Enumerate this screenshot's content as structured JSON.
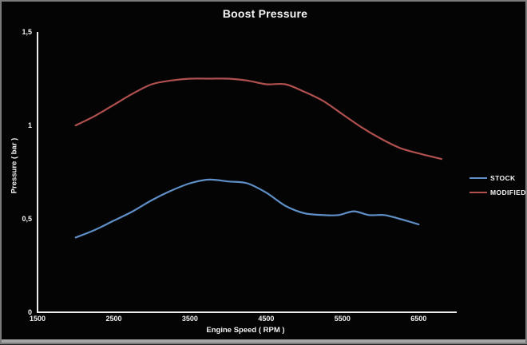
{
  "window": {
    "background": "#040404",
    "border_color": "#7b7b7b",
    "bottom_bar_color": "#a6a6a6"
  },
  "chart_data": {
    "type": "line",
    "title": "Boost Pressure",
    "xlabel": "Engine Speed ( RPM )",
    "ylabel": "Pressure ( bar )",
    "xlim": [
      1500,
      7000
    ],
    "ylim": [
      0,
      1.5
    ],
    "grid": false,
    "legend_position": "right",
    "axis_color": "#ececec",
    "text_color": "#f2f2f2",
    "x_ticks": [
      {
        "value": 1500,
        "label": "1500"
      },
      {
        "value": 2500,
        "label": "2500"
      },
      {
        "value": 3500,
        "label": "3500"
      },
      {
        "value": 4500,
        "label": "4500"
      },
      {
        "value": 5500,
        "label": "5500"
      },
      {
        "value": 6500,
        "label": "6500"
      }
    ],
    "y_ticks": [
      {
        "value": 0,
        "label": "0"
      },
      {
        "value": 0.5,
        "label": "0,5"
      },
      {
        "value": 1,
        "label": "1"
      },
      {
        "value": 1.5,
        "label": "1,5"
      }
    ],
    "series": [
      {
        "name": "STOCK",
        "color": "#5f8fc7",
        "x": [
          2000,
          2250,
          2500,
          2750,
          3000,
          3250,
          3500,
          3750,
          4000,
          4250,
          4500,
          4750,
          5000,
          5250,
          5450,
          5650,
          5850,
          6050,
          6250,
          6500
        ],
        "y": [
          0.4,
          0.44,
          0.49,
          0.54,
          0.6,
          0.65,
          0.69,
          0.71,
          0.7,
          0.69,
          0.64,
          0.57,
          0.53,
          0.52,
          0.52,
          0.54,
          0.52,
          0.52,
          0.5,
          0.47
        ]
      },
      {
        "name": "MODIFIED",
        "color": "#b0504f",
        "x": [
          2000,
          2250,
          2500,
          2750,
          3000,
          3250,
          3500,
          3750,
          4000,
          4250,
          4500,
          4750,
          5000,
          5250,
          5500,
          5750,
          6000,
          6250,
          6500,
          6800
        ],
        "y": [
          1.0,
          1.05,
          1.11,
          1.17,
          1.22,
          1.24,
          1.25,
          1.25,
          1.25,
          1.24,
          1.22,
          1.22,
          1.18,
          1.13,
          1.06,
          0.99,
          0.93,
          0.88,
          0.85,
          0.82
        ]
      }
    ]
  }
}
